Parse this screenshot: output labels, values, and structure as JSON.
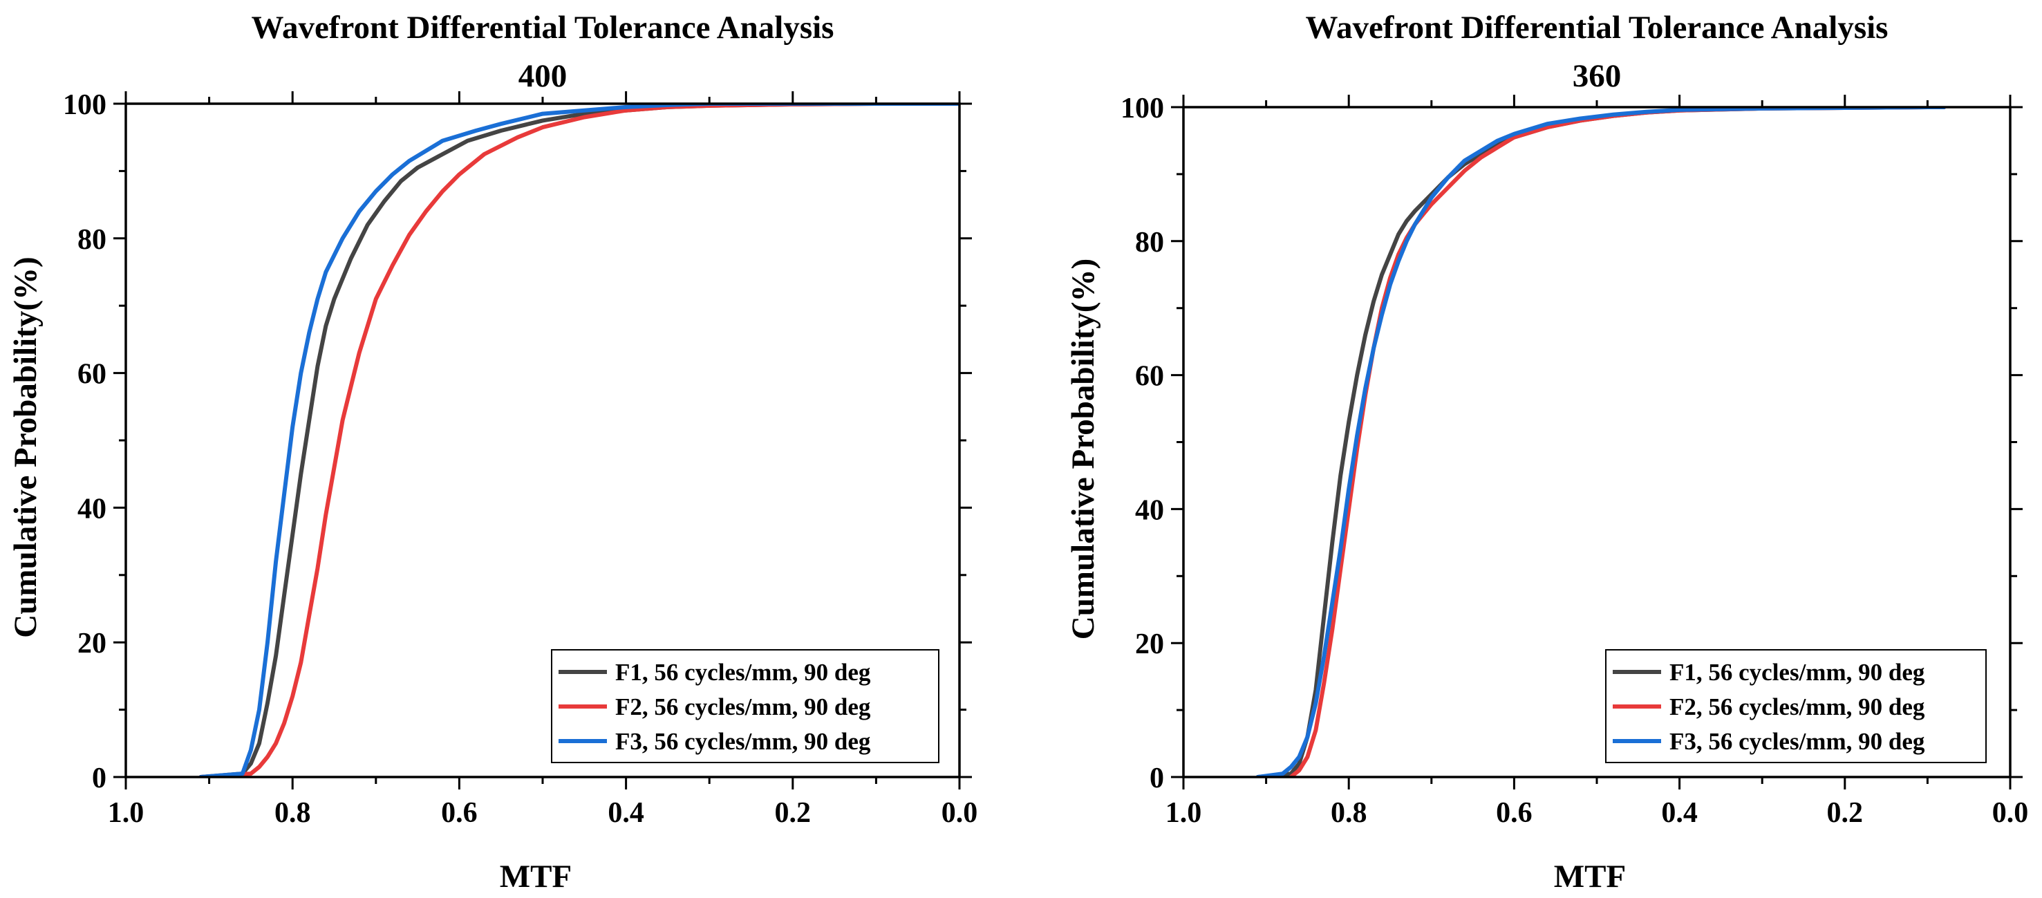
{
  "chart_data": [
    {
      "type": "line",
      "title": "Wavefront Differential Tolerance Analysis",
      "subtitle": "400",
      "xlabel": "MTF",
      "ylabel": "Cumulative Probability(%)",
      "xlim": [
        1.0,
        0.0
      ],
      "ylim": [
        0,
        100
      ],
      "x_ticks": [
        "1.0",
        "0.8",
        "0.6",
        "0.4",
        "0.2",
        "0.0"
      ],
      "y_ticks": [
        "0",
        "20",
        "40",
        "60",
        "80",
        "100"
      ],
      "legend_position": "bottom-right",
      "series": [
        {
          "name": "F1, 56 cycles/mm, 90 deg",
          "color": "#444444",
          "x": [
            0.91,
            0.86,
            0.85,
            0.84,
            0.83,
            0.82,
            0.81,
            0.8,
            0.79,
            0.78,
            0.77,
            0.76,
            0.75,
            0.73,
            0.71,
            0.69,
            0.67,
            0.65,
            0.62,
            0.59,
            0.55,
            0.5,
            0.45,
            0.4,
            0.35,
            0.3,
            0.2,
            0.1,
            0.0
          ],
          "y": [
            0,
            0.5,
            2,
            5,
            11,
            18,
            27,
            36,
            45,
            53,
            61,
            67,
            71,
            77,
            82,
            85.5,
            88.5,
            90.5,
            92.5,
            94.5,
            96,
            97.5,
            98.5,
            99,
            99.5,
            99.7,
            99.9,
            100,
            100
          ]
        },
        {
          "name": "F2, 56 cycles/mm, 90 deg",
          "color": "#e83a3a",
          "x": [
            0.91,
            0.85,
            0.84,
            0.83,
            0.82,
            0.81,
            0.8,
            0.79,
            0.78,
            0.77,
            0.76,
            0.75,
            0.74,
            0.73,
            0.72,
            0.7,
            0.68,
            0.66,
            0.64,
            0.62,
            0.6,
            0.57,
            0.53,
            0.5,
            0.45,
            0.4,
            0.35,
            0.3,
            0.2,
            0.1,
            0.0
          ],
          "y": [
            0,
            0.5,
            1.5,
            3,
            5,
            8,
            12,
            17,
            24,
            31,
            39,
            46,
            53,
            58,
            63,
            71,
            76,
            80.5,
            84,
            87,
            89.5,
            92.5,
            95,
            96.5,
            98,
            99,
            99.5,
            99.7,
            99.9,
            100,
            100
          ]
        },
        {
          "name": "F3, 56 cycles/mm, 90 deg",
          "color": "#1a6fd6",
          "x": [
            0.91,
            0.86,
            0.85,
            0.84,
            0.83,
            0.82,
            0.81,
            0.8,
            0.79,
            0.78,
            0.77,
            0.76,
            0.74,
            0.72,
            0.7,
            0.68,
            0.66,
            0.64,
            0.62,
            0.58,
            0.55,
            0.5,
            0.45,
            0.4,
            0.35,
            0.3,
            0.2,
            0.1,
            0.0
          ],
          "y": [
            0,
            0.5,
            4,
            10,
            20,
            32,
            42,
            52,
            60,
            66,
            71,
            75,
            80,
            84,
            87,
            89.5,
            91.5,
            93,
            94.5,
            96,
            97,
            98.5,
            99,
            99.5,
            99.8,
            100,
            100,
            100,
            100
          ]
        }
      ]
    },
    {
      "type": "line",
      "title": "Wavefront Differential Tolerance Analysis",
      "subtitle": "360",
      "xlabel": "MTF",
      "ylabel": "Cumulative Probability(%)",
      "xlim": [
        1.0,
        0.0
      ],
      "ylim": [
        0,
        100
      ],
      "x_ticks": [
        "1.0",
        "0.8",
        "0.6",
        "0.4",
        "0.2",
        "0.0"
      ],
      "y_ticks": [
        "0",
        "20",
        "40",
        "60",
        "80",
        "100"
      ],
      "legend_position": "bottom-right",
      "series": [
        {
          "name": "F1, 56 cycles/mm, 90 deg",
          "color": "#444444",
          "x": [
            0.91,
            0.87,
            0.86,
            0.85,
            0.84,
            0.83,
            0.82,
            0.81,
            0.8,
            0.79,
            0.78,
            0.77,
            0.76,
            0.75,
            0.74,
            0.73,
            0.72,
            0.7,
            0.68,
            0.66,
            0.64,
            0.62,
            0.6,
            0.56,
            0.52,
            0.48,
            0.44,
            0.4,
            0.3,
            0.2,
            0.1,
            0.08
          ],
          "y": [
            0,
            0.5,
            2,
            6,
            13,
            24,
            35,
            45,
            53,
            60,
            66,
            71,
            75,
            78,
            81,
            83,
            84.5,
            87,
            89.5,
            91.5,
            93,
            94.5,
            95.5,
            97,
            98,
            98.7,
            99.2,
            99.5,
            99.8,
            99.9,
            100,
            100
          ]
        },
        {
          "name": "F2, 56 cycles/mm, 90 deg",
          "color": "#e83a3a",
          "x": [
            0.87,
            0.86,
            0.85,
            0.84,
            0.83,
            0.82,
            0.81,
            0.8,
            0.79,
            0.78,
            0.77,
            0.76,
            0.75,
            0.74,
            0.73,
            0.72,
            0.71,
            0.7,
            0.68,
            0.66,
            0.64,
            0.62,
            0.6,
            0.56,
            0.52,
            0.48,
            0.44,
            0.4,
            0.3,
            0.2,
            0.1,
            0.08
          ],
          "y": [
            0,
            1,
            3,
            7,
            14,
            22,
            31,
            40,
            49,
            57,
            64,
            70,
            74.5,
            78,
            80.5,
            82.5,
            84,
            85.5,
            88,
            90.5,
            92.5,
            94,
            95.5,
            97,
            98,
            98.7,
            99.2,
            99.5,
            99.8,
            99.9,
            100,
            100
          ]
        },
        {
          "name": "F3, 56 cycles/mm, 90 deg",
          "color": "#1a6fd6",
          "x": [
            0.91,
            0.88,
            0.87,
            0.86,
            0.85,
            0.84,
            0.83,
            0.82,
            0.81,
            0.8,
            0.79,
            0.78,
            0.77,
            0.76,
            0.75,
            0.74,
            0.73,
            0.72,
            0.71,
            0.7,
            0.68,
            0.66,
            0.64,
            0.62,
            0.6,
            0.56,
            0.52,
            0.48,
            0.44,
            0.4,
            0.3,
            0.2,
            0.1,
            0.08
          ],
          "y": [
            0,
            0.5,
            1.5,
            3,
            6,
            11,
            18,
            26,
            34,
            43,
            51,
            58,
            64,
            69,
            73.5,
            77,
            80,
            82.5,
            84.5,
            86.5,
            89.5,
            92,
            93.5,
            95,
            96,
            97.5,
            98.3,
            98.9,
            99.3,
            99.6,
            99.8,
            99.9,
            100,
            100
          ]
        }
      ]
    }
  ]
}
